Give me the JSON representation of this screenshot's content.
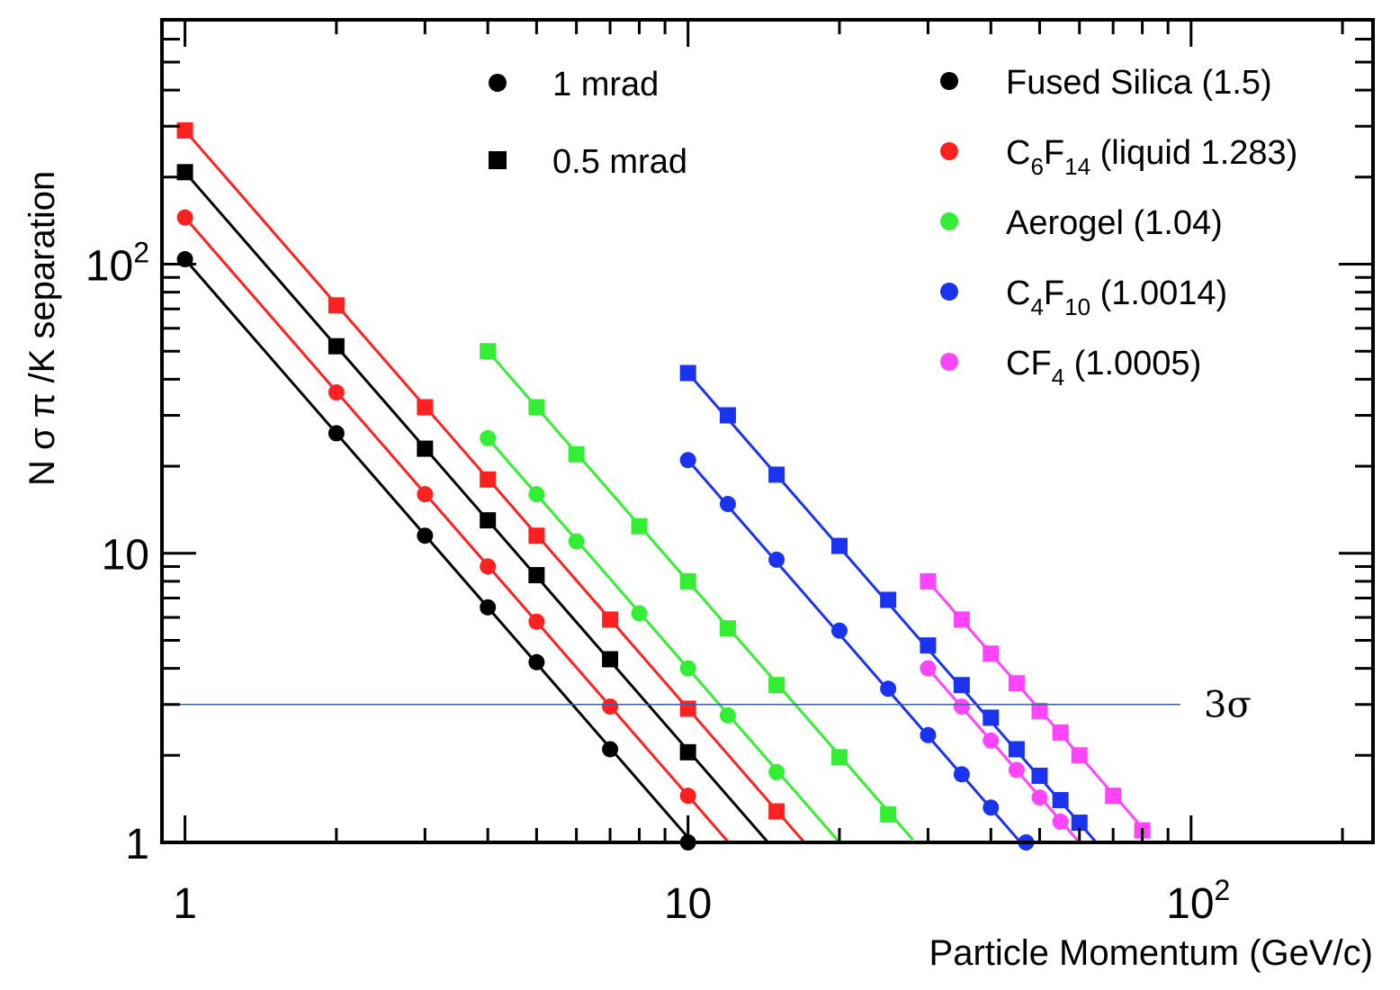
{
  "chart_data": {
    "type": "line",
    "xscale": "log",
    "yscale": "log",
    "xlim": [
      0.9,
      230
    ],
    "ylim": [
      1,
      700
    ],
    "xlabel": "Particle Momentum (GeV/c)",
    "ylabel": "N σ   π /K   separation",
    "x_tick_labels": [
      {
        "value": 1,
        "base": "1",
        "exp": ""
      },
      {
        "value": 10,
        "base": "10",
        "exp": ""
      },
      {
        "value": 100,
        "base": "10",
        "exp": "2"
      }
    ],
    "y_tick_labels": [
      {
        "value": 1,
        "base": "1",
        "exp": ""
      },
      {
        "value": 10,
        "base": "10",
        "exp": ""
      },
      {
        "value": 100,
        "base": "10",
        "exp": "2"
      }
    ],
    "marker_legend": [
      {
        "marker": "circle",
        "label": "1 mrad"
      },
      {
        "marker": "square",
        "label": "0.5 mrad"
      }
    ],
    "material_legend": [
      {
        "color": "#000000",
        "main": "Fused Silica (1.5)",
        "parts": []
      },
      {
        "color": "#ff2020",
        "main": "",
        "parts": [
          [
            "C",
            ""
          ],
          [
            "6",
            "sub"
          ],
          [
            "F",
            ""
          ],
          [
            "14",
            "sub"
          ],
          [
            " (liquid 1.283)",
            ""
          ]
        ]
      },
      {
        "color": "#33ee33",
        "main": "Aerogel (1.04)",
        "parts": []
      },
      {
        "color": "#1a33ee",
        "main": "",
        "parts": [
          [
            "C",
            ""
          ],
          [
            "4",
            "sub"
          ],
          [
            "F",
            ""
          ],
          [
            "10",
            "sub"
          ],
          [
            " (1.0014)",
            ""
          ]
        ]
      },
      {
        "color": "#ff44ff",
        "main": "",
        "parts": [
          [
            "CF",
            ""
          ],
          [
            "4",
            "sub"
          ],
          [
            " (1.0005)",
            ""
          ]
        ]
      }
    ],
    "reference_line": {
      "y": 3,
      "label": "3σ",
      "color": "#3a5fa8"
    },
    "series": [
      {
        "name": "Fused Silica (1.5) - 1 mrad",
        "color": "#000000",
        "marker": "circle",
        "x": [
          1,
          2,
          3,
          4,
          5,
          7,
          10
        ],
        "y": [
          104,
          26,
          11.5,
          6.5,
          4.2,
          2.1,
          1.0
        ],
        "line_end_x": 10
      },
      {
        "name": "Fused Silica (1.5) - 0.5 mrad",
        "color": "#000000",
        "marker": "square",
        "x": [
          1,
          2,
          3,
          4,
          5,
          7,
          10
        ],
        "y": [
          208,
          52,
          23,
          13,
          8.4,
          4.3,
          2.05
        ],
        "line_end_x": 14.4
      },
      {
        "name": "C6F14 (liquid 1.283) - 1 mrad",
        "color": "#ff2020",
        "marker": "circle",
        "x": [
          1,
          2,
          3,
          4,
          5,
          7,
          10
        ],
        "y": [
          145,
          36,
          16,
          9,
          5.8,
          2.95,
          1.45
        ],
        "line_end_x": 12
      },
      {
        "name": "C6F14 (liquid 1.283) - 0.5 mrad",
        "color": "#ff2020",
        "marker": "square",
        "x": [
          1,
          2,
          3,
          4,
          5,
          7,
          10,
          15
        ],
        "y": [
          290,
          72,
          32,
          18,
          11.5,
          5.9,
          2.9,
          1.28
        ],
        "line_end_x": 17
      },
      {
        "name": "Aerogel (1.04) - 1 mrad",
        "color": "#33ee33",
        "marker": "circle",
        "x": [
          4,
          5,
          6,
          8,
          10,
          12,
          15
        ],
        "y": [
          25,
          16,
          11,
          6.2,
          4.0,
          2.75,
          1.75
        ],
        "line_end_x": 20
      },
      {
        "name": "Aerogel (1.04) - 0.5 mrad",
        "color": "#33ee33",
        "marker": "square",
        "x": [
          4,
          5,
          6,
          8,
          10,
          12,
          15,
          20,
          25
        ],
        "y": [
          50,
          32,
          22,
          12.4,
          8.0,
          5.5,
          3.5,
          1.97,
          1.25
        ],
        "line_end_x": 28
      },
      {
        "name": "C4F10 (1.0014) - 1 mrad",
        "color": "#1a33ee",
        "marker": "circle",
        "x": [
          10,
          12,
          15,
          20,
          25,
          30,
          35,
          40,
          47
        ],
        "y": [
          21,
          14.8,
          9.5,
          5.4,
          3.4,
          2.35,
          1.72,
          1.32,
          1.0
        ],
        "line_end_x": 47
      },
      {
        "name": "C4F10 (1.0014) - 0.5 mrad",
        "color": "#1a33ee",
        "marker": "square",
        "x": [
          10,
          12,
          15,
          20,
          25,
          30,
          35,
          40,
          45,
          50,
          55,
          60
        ],
        "y": [
          42,
          30,
          18.7,
          10.6,
          6.9,
          4.8,
          3.5,
          2.7,
          2.1,
          1.7,
          1.4,
          1.17
        ],
        "line_end_x": 65
      },
      {
        "name": "CF4 (1.0005) - 1 mrad",
        "color": "#ff44ff",
        "marker": "circle",
        "x": [
          30,
          35,
          40,
          45,
          50,
          55
        ],
        "y": [
          4.0,
          2.95,
          2.25,
          1.78,
          1.43,
          1.18
        ],
        "line_end_x": 60
      },
      {
        "name": "CF4 (1.0005) - 0.5 mrad",
        "color": "#ff44ff",
        "marker": "square",
        "x": [
          30,
          35,
          40,
          45,
          50,
          55,
          60,
          70,
          80
        ],
        "y": [
          8.0,
          5.9,
          4.5,
          3.55,
          2.85,
          2.4,
          2.0,
          1.45,
          1.1
        ],
        "line_end_x": 80
      }
    ]
  }
}
